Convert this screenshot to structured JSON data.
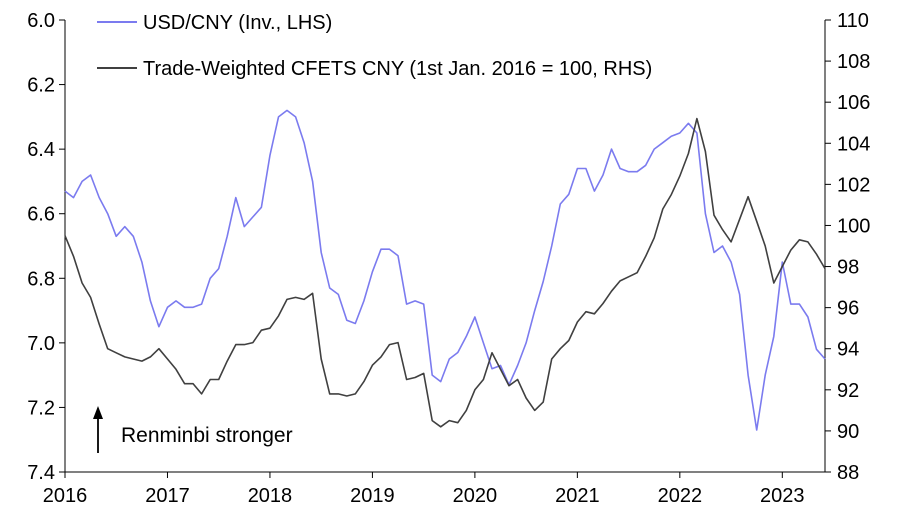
{
  "chart_data": {
    "type": "line",
    "title": "",
    "x_axis": {
      "range": [
        "2016-01",
        "2023-06"
      ],
      "tick_labels": [
        "2016",
        "2017",
        "2018",
        "2019",
        "2020",
        "2021",
        "2022",
        "2023"
      ]
    },
    "y_axis_left": {
      "label": "",
      "range": [
        6.0,
        7.4
      ],
      "inverted": true,
      "tick_labels": [
        "6.0",
        "6.2",
        "6.4",
        "6.6",
        "6.8",
        "7.0",
        "7.2",
        "7.4"
      ]
    },
    "y_axis_right": {
      "label": "",
      "range": [
        88,
        110
      ],
      "tick_labels": [
        "88",
        "90",
        "92",
        "94",
        "96",
        "98",
        "100",
        "102",
        "104",
        "106",
        "108",
        "110"
      ]
    },
    "legend": {
      "placement": "top-left"
    },
    "grid": false,
    "series": [
      {
        "name": "USD/CNY (Inv., LHS)",
        "axis": "left",
        "color": "#7b7bef",
        "points": [
          [
            "2016-01",
            6.53
          ],
          [
            "2016-02",
            6.55
          ],
          [
            "2016-03",
            6.5
          ],
          [
            "2016-04",
            6.48
          ],
          [
            "2016-05",
            6.55
          ],
          [
            "2016-06",
            6.6
          ],
          [
            "2016-07",
            6.67
          ],
          [
            "2016-08",
            6.64
          ],
          [
            "2016-09",
            6.67
          ],
          [
            "2016-10",
            6.75
          ],
          [
            "2016-11",
            6.87
          ],
          [
            "2016-12",
            6.95
          ],
          [
            "2017-01",
            6.89
          ],
          [
            "2017-02",
            6.87
          ],
          [
            "2017-03",
            6.89
          ],
          [
            "2017-04",
            6.89
          ],
          [
            "2017-05",
            6.88
          ],
          [
            "2017-06",
            6.8
          ],
          [
            "2017-07",
            6.77
          ],
          [
            "2017-08",
            6.67
          ],
          [
            "2017-09",
            6.55
          ],
          [
            "2017-10",
            6.64
          ],
          [
            "2017-11",
            6.61
          ],
          [
            "2017-12",
            6.58
          ],
          [
            "2018-01",
            6.42
          ],
          [
            "2018-02",
            6.3
          ],
          [
            "2018-03",
            6.28
          ],
          [
            "2018-04",
            6.3
          ],
          [
            "2018-05",
            6.38
          ],
          [
            "2018-06",
            6.5
          ],
          [
            "2018-07",
            6.72
          ],
          [
            "2018-08",
            6.83
          ],
          [
            "2018-09",
            6.85
          ],
          [
            "2018-10",
            6.93
          ],
          [
            "2018-11",
            6.94
          ],
          [
            "2018-12",
            6.87
          ],
          [
            "2019-01",
            6.78
          ],
          [
            "2019-02",
            6.71
          ],
          [
            "2019-03",
            6.71
          ],
          [
            "2019-04",
            6.73
          ],
          [
            "2019-05",
            6.88
          ],
          [
            "2019-06",
            6.87
          ],
          [
            "2019-07",
            6.88
          ],
          [
            "2019-08",
            7.1
          ],
          [
            "2019-09",
            7.12
          ],
          [
            "2019-10",
            7.05
          ],
          [
            "2019-11",
            7.03
          ],
          [
            "2019-12",
            6.98
          ],
          [
            "2020-01",
            6.92
          ],
          [
            "2020-02",
            7.0
          ],
          [
            "2020-03",
            7.08
          ],
          [
            "2020-04",
            7.07
          ],
          [
            "2020-05",
            7.13
          ],
          [
            "2020-06",
            7.07
          ],
          [
            "2020-07",
            7.0
          ],
          [
            "2020-08",
            6.9
          ],
          [
            "2020-09",
            6.81
          ],
          [
            "2020-10",
            6.7
          ],
          [
            "2020-11",
            6.57
          ],
          [
            "2020-12",
            6.54
          ],
          [
            "2021-01",
            6.46
          ],
          [
            "2021-02",
            6.46
          ],
          [
            "2021-03",
            6.53
          ],
          [
            "2021-04",
            6.48
          ],
          [
            "2021-05",
            6.4
          ],
          [
            "2021-06",
            6.46
          ],
          [
            "2021-07",
            6.47
          ],
          [
            "2021-08",
            6.47
          ],
          [
            "2021-09",
            6.45
          ],
          [
            "2021-10",
            6.4
          ],
          [
            "2021-11",
            6.38
          ],
          [
            "2021-12",
            6.36
          ],
          [
            "2022-01",
            6.35
          ],
          [
            "2022-02",
            6.32
          ],
          [
            "2022-03",
            6.35
          ],
          [
            "2022-04",
            6.6
          ],
          [
            "2022-05",
            6.72
          ],
          [
            "2022-06",
            6.7
          ],
          [
            "2022-07",
            6.75
          ],
          [
            "2022-08",
            6.85
          ],
          [
            "2022-09",
            7.1
          ],
          [
            "2022-10",
            7.27
          ],
          [
            "2022-11",
            7.1
          ],
          [
            "2022-12",
            6.98
          ],
          [
            "2023-01",
            6.75
          ],
          [
            "2023-02",
            6.88
          ],
          [
            "2023-03",
            6.88
          ],
          [
            "2023-04",
            6.92
          ],
          [
            "2023-05",
            7.02
          ],
          [
            "2023-06",
            7.05
          ]
        ]
      },
      {
        "name": "Trade-Weighted CFETS CNY (1st Jan. 2016 = 100, RHS)",
        "axis": "right",
        "color": "#404040",
        "points": [
          [
            "2016-01",
            99.5
          ],
          [
            "2016-02",
            98.5
          ],
          [
            "2016-03",
            97.2
          ],
          [
            "2016-04",
            96.5
          ],
          [
            "2016-05",
            95.2
          ],
          [
            "2016-06",
            94.0
          ],
          [
            "2016-07",
            93.8
          ],
          [
            "2016-08",
            93.6
          ],
          [
            "2016-09",
            93.5
          ],
          [
            "2016-10",
            93.4
          ],
          [
            "2016-11",
            93.6
          ],
          [
            "2016-12",
            94.0
          ],
          [
            "2017-01",
            93.5
          ],
          [
            "2017-02",
            93.0
          ],
          [
            "2017-03",
            92.3
          ],
          [
            "2017-04",
            92.3
          ],
          [
            "2017-05",
            91.8
          ],
          [
            "2017-06",
            92.5
          ],
          [
            "2017-07",
            92.5
          ],
          [
            "2017-08",
            93.4
          ],
          [
            "2017-09",
            94.2
          ],
          [
            "2017-10",
            94.2
          ],
          [
            "2017-11",
            94.3
          ],
          [
            "2017-12",
            94.9
          ],
          [
            "2018-01",
            95.0
          ],
          [
            "2018-02",
            95.6
          ],
          [
            "2018-03",
            96.4
          ],
          [
            "2018-04",
            96.5
          ],
          [
            "2018-05",
            96.4
          ],
          [
            "2018-06",
            96.7
          ],
          [
            "2018-07",
            93.5
          ],
          [
            "2018-08",
            91.8
          ],
          [
            "2018-09",
            91.8
          ],
          [
            "2018-10",
            91.7
          ],
          [
            "2018-11",
            91.8
          ],
          [
            "2018-12",
            92.4
          ],
          [
            "2019-01",
            93.2
          ],
          [
            "2019-02",
            93.6
          ],
          [
            "2019-03",
            94.2
          ],
          [
            "2019-04",
            94.3
          ],
          [
            "2019-05",
            92.5
          ],
          [
            "2019-06",
            92.6
          ],
          [
            "2019-07",
            92.8
          ],
          [
            "2019-08",
            90.5
          ],
          [
            "2019-09",
            90.2
          ],
          [
            "2019-10",
            90.5
          ],
          [
            "2019-11",
            90.4
          ],
          [
            "2019-12",
            91.0
          ],
          [
            "2020-01",
            92.0
          ],
          [
            "2020-02",
            92.5
          ],
          [
            "2020-03",
            93.8
          ],
          [
            "2020-04",
            93.0
          ],
          [
            "2020-05",
            92.2
          ],
          [
            "2020-06",
            92.5
          ],
          [
            "2020-07",
            91.6
          ],
          [
            "2020-08",
            91.0
          ],
          [
            "2020-09",
            91.4
          ],
          [
            "2020-10",
            93.5
          ],
          [
            "2020-11",
            94.0
          ],
          [
            "2020-12",
            94.4
          ],
          [
            "2021-01",
            95.3
          ],
          [
            "2021-02",
            95.8
          ],
          [
            "2021-03",
            95.7
          ],
          [
            "2021-04",
            96.2
          ],
          [
            "2021-05",
            96.8
          ],
          [
            "2021-06",
            97.3
          ],
          [
            "2021-07",
            97.5
          ],
          [
            "2021-08",
            97.7
          ],
          [
            "2021-09",
            98.5
          ],
          [
            "2021-10",
            99.4
          ],
          [
            "2021-11",
            100.8
          ],
          [
            "2021-12",
            101.5
          ],
          [
            "2022-01",
            102.4
          ],
          [
            "2022-02",
            103.5
          ],
          [
            "2022-03",
            105.2
          ],
          [
            "2022-04",
            103.6
          ],
          [
            "2022-05",
            100.5
          ],
          [
            "2022-06",
            99.8
          ],
          [
            "2022-07",
            99.2
          ],
          [
            "2022-08",
            100.3
          ],
          [
            "2022-09",
            101.4
          ],
          [
            "2022-10",
            100.2
          ],
          [
            "2022-11",
            99.0
          ],
          [
            "2022-12",
            97.2
          ],
          [
            "2023-01",
            98.0
          ],
          [
            "2023-02",
            98.8
          ],
          [
            "2023-03",
            99.3
          ],
          [
            "2023-04",
            99.2
          ],
          [
            "2023-05",
            98.6
          ],
          [
            "2023-06",
            97.9
          ]
        ]
      }
    ],
    "annotations": [
      {
        "text": "Renminbi stronger",
        "kind": "arrow-up"
      }
    ]
  }
}
